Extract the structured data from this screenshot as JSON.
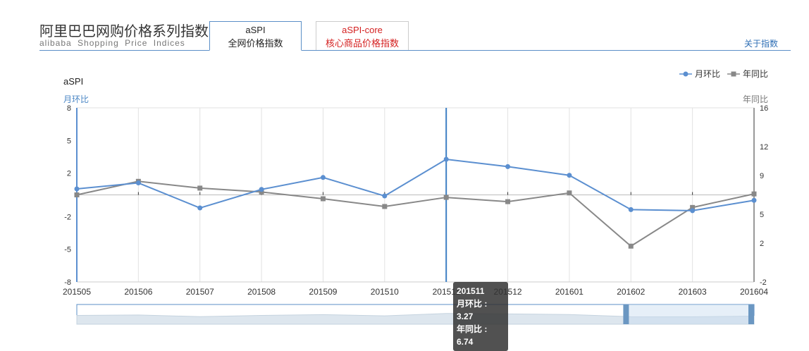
{
  "header": {
    "title": "阿里巴巴网购价格系列指数",
    "subtitle": "alibaba Shopping Price Indices"
  },
  "tabs": [
    {
      "line1": "aSPI",
      "line2": "全网价格指数",
      "active": true
    },
    {
      "line1": "aSPI-core",
      "line2": "核心商品价格指数",
      "active": false
    }
  ],
  "about_label": "关于指数",
  "colors": {
    "mom": "#5b8fd0",
    "yoy": "#888888",
    "accent": "#5b8fc7",
    "core_tab": "#d42020"
  },
  "chart_data": {
    "type": "line",
    "title": "aSPI",
    "categories": [
      "201505",
      "201506",
      "201507",
      "201508",
      "201509",
      "201510",
      "201511",
      "201512",
      "201601",
      "201602",
      "201603",
      "201604"
    ],
    "series": [
      {
        "name": "月环比",
        "axis": "left",
        "values": [
          0.55,
          1.1,
          -1.2,
          0.5,
          1.6,
          -0.1,
          3.27,
          2.6,
          1.8,
          -1.35,
          -1.45,
          -0.5
        ]
      },
      {
        "name": "年同比",
        "axis": "right",
        "values": [
          7.0,
          8.4,
          7.7,
          7.3,
          6.6,
          5.8,
          6.74,
          6.3,
          7.2,
          1.7,
          5.7,
          7.1
        ]
      }
    ],
    "y_left": {
      "label": "月环比",
      "ticks": [
        8,
        5,
        2,
        -2,
        -5,
        -8
      ],
      "ylim": [
        -8,
        8
      ]
    },
    "y_right": {
      "label": "年同比",
      "ticks": [
        16,
        12,
        9,
        5,
        2,
        -2
      ],
      "ylim": [
        -2,
        16
      ]
    },
    "legend": "top-right",
    "grid": true,
    "tooltip": {
      "category": "201511",
      "lines": [
        "月环比 : 3.27",
        "年同比 : 6.74"
      ]
    },
    "highlight_index": 6,
    "zoom_range": [
      0,
      0.81
    ]
  }
}
